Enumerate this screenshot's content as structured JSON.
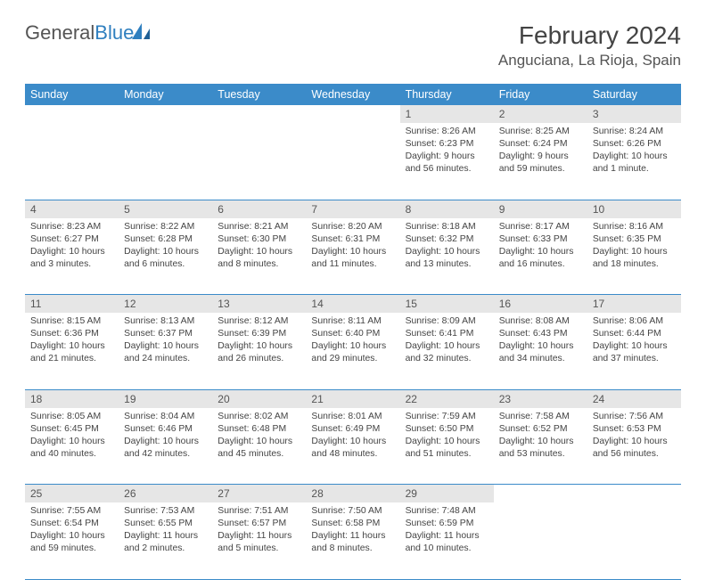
{
  "logo": {
    "word1": "General",
    "word2": "Blue"
  },
  "title": "February 2024",
  "location": "Anguciana, La Rioja, Spain",
  "colors": {
    "header_bg": "#3b8bc9",
    "header_text": "#ffffff",
    "daynum_bg": "#e6e6e6",
    "border": "#3b8bc9",
    "logo_gray": "#555555",
    "logo_blue": "#2f7fbf",
    "title_color": "#444444",
    "body_text": "#444444"
  },
  "typography": {
    "title_fontsize": 28,
    "location_fontsize": 17,
    "weekday_fontsize": 12.5,
    "daynum_fontsize": 12,
    "detail_fontsize": 10.4
  },
  "weekdays": [
    "Sunday",
    "Monday",
    "Tuesday",
    "Wednesday",
    "Thursday",
    "Friday",
    "Saturday"
  ],
  "weeks": [
    [
      null,
      null,
      null,
      null,
      {
        "n": "1",
        "sr": "Sunrise: 8:26 AM",
        "ss": "Sunset: 6:23 PM",
        "dl": "Daylight: 9 hours and 56 minutes."
      },
      {
        "n": "2",
        "sr": "Sunrise: 8:25 AM",
        "ss": "Sunset: 6:24 PM",
        "dl": "Daylight: 9 hours and 59 minutes."
      },
      {
        "n": "3",
        "sr": "Sunrise: 8:24 AM",
        "ss": "Sunset: 6:26 PM",
        "dl": "Daylight: 10 hours and 1 minute."
      }
    ],
    [
      {
        "n": "4",
        "sr": "Sunrise: 8:23 AM",
        "ss": "Sunset: 6:27 PM",
        "dl": "Daylight: 10 hours and 3 minutes."
      },
      {
        "n": "5",
        "sr": "Sunrise: 8:22 AM",
        "ss": "Sunset: 6:28 PM",
        "dl": "Daylight: 10 hours and 6 minutes."
      },
      {
        "n": "6",
        "sr": "Sunrise: 8:21 AM",
        "ss": "Sunset: 6:30 PM",
        "dl": "Daylight: 10 hours and 8 minutes."
      },
      {
        "n": "7",
        "sr": "Sunrise: 8:20 AM",
        "ss": "Sunset: 6:31 PM",
        "dl": "Daylight: 10 hours and 11 minutes."
      },
      {
        "n": "8",
        "sr": "Sunrise: 8:18 AM",
        "ss": "Sunset: 6:32 PM",
        "dl": "Daylight: 10 hours and 13 minutes."
      },
      {
        "n": "9",
        "sr": "Sunrise: 8:17 AM",
        "ss": "Sunset: 6:33 PM",
        "dl": "Daylight: 10 hours and 16 minutes."
      },
      {
        "n": "10",
        "sr": "Sunrise: 8:16 AM",
        "ss": "Sunset: 6:35 PM",
        "dl": "Daylight: 10 hours and 18 minutes."
      }
    ],
    [
      {
        "n": "11",
        "sr": "Sunrise: 8:15 AM",
        "ss": "Sunset: 6:36 PM",
        "dl": "Daylight: 10 hours and 21 minutes."
      },
      {
        "n": "12",
        "sr": "Sunrise: 8:13 AM",
        "ss": "Sunset: 6:37 PM",
        "dl": "Daylight: 10 hours and 24 minutes."
      },
      {
        "n": "13",
        "sr": "Sunrise: 8:12 AM",
        "ss": "Sunset: 6:39 PM",
        "dl": "Daylight: 10 hours and 26 minutes."
      },
      {
        "n": "14",
        "sr": "Sunrise: 8:11 AM",
        "ss": "Sunset: 6:40 PM",
        "dl": "Daylight: 10 hours and 29 minutes."
      },
      {
        "n": "15",
        "sr": "Sunrise: 8:09 AM",
        "ss": "Sunset: 6:41 PM",
        "dl": "Daylight: 10 hours and 32 minutes."
      },
      {
        "n": "16",
        "sr": "Sunrise: 8:08 AM",
        "ss": "Sunset: 6:43 PM",
        "dl": "Daylight: 10 hours and 34 minutes."
      },
      {
        "n": "17",
        "sr": "Sunrise: 8:06 AM",
        "ss": "Sunset: 6:44 PM",
        "dl": "Daylight: 10 hours and 37 minutes."
      }
    ],
    [
      {
        "n": "18",
        "sr": "Sunrise: 8:05 AM",
        "ss": "Sunset: 6:45 PM",
        "dl": "Daylight: 10 hours and 40 minutes."
      },
      {
        "n": "19",
        "sr": "Sunrise: 8:04 AM",
        "ss": "Sunset: 6:46 PM",
        "dl": "Daylight: 10 hours and 42 minutes."
      },
      {
        "n": "20",
        "sr": "Sunrise: 8:02 AM",
        "ss": "Sunset: 6:48 PM",
        "dl": "Daylight: 10 hours and 45 minutes."
      },
      {
        "n": "21",
        "sr": "Sunrise: 8:01 AM",
        "ss": "Sunset: 6:49 PM",
        "dl": "Daylight: 10 hours and 48 minutes."
      },
      {
        "n": "22",
        "sr": "Sunrise: 7:59 AM",
        "ss": "Sunset: 6:50 PM",
        "dl": "Daylight: 10 hours and 51 minutes."
      },
      {
        "n": "23",
        "sr": "Sunrise: 7:58 AM",
        "ss": "Sunset: 6:52 PM",
        "dl": "Daylight: 10 hours and 53 minutes."
      },
      {
        "n": "24",
        "sr": "Sunrise: 7:56 AM",
        "ss": "Sunset: 6:53 PM",
        "dl": "Daylight: 10 hours and 56 minutes."
      }
    ],
    [
      {
        "n": "25",
        "sr": "Sunrise: 7:55 AM",
        "ss": "Sunset: 6:54 PM",
        "dl": "Daylight: 10 hours and 59 minutes."
      },
      {
        "n": "26",
        "sr": "Sunrise: 7:53 AM",
        "ss": "Sunset: 6:55 PM",
        "dl": "Daylight: 11 hours and 2 minutes."
      },
      {
        "n": "27",
        "sr": "Sunrise: 7:51 AM",
        "ss": "Sunset: 6:57 PM",
        "dl": "Daylight: 11 hours and 5 minutes."
      },
      {
        "n": "28",
        "sr": "Sunrise: 7:50 AM",
        "ss": "Sunset: 6:58 PM",
        "dl": "Daylight: 11 hours and 8 minutes."
      },
      {
        "n": "29",
        "sr": "Sunrise: 7:48 AM",
        "ss": "Sunset: 6:59 PM",
        "dl": "Daylight: 11 hours and 10 minutes."
      },
      null,
      null
    ]
  ]
}
